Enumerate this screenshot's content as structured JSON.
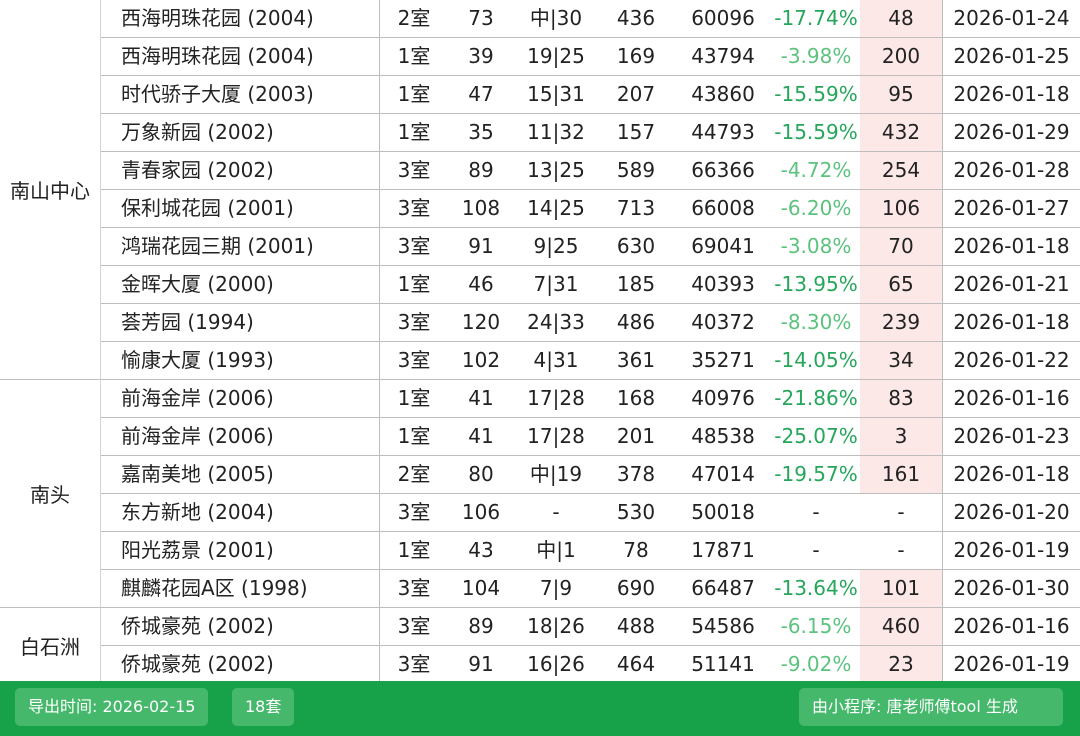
{
  "groups": [
    {
      "name": "南山中心",
      "row_count": 10
    },
    {
      "name": "南头",
      "row_count": 6
    },
    {
      "name": "白石洲",
      "row_count": 2
    }
  ],
  "rows": [
    {
      "name": "西海明珠花园 (2004)",
      "room": "2室",
      "area": "73",
      "floor": "中|30",
      "total": "436",
      "unit_price": "60096",
      "change": "-17.74%",
      "days": "48",
      "date": "2026-01-24"
    },
    {
      "name": "西海明珠花园 (2004)",
      "room": "1室",
      "area": "39",
      "floor": "19|25",
      "total": "169",
      "unit_price": "43794",
      "change": "-3.98%",
      "days": "200",
      "date": "2026-01-25"
    },
    {
      "name": "时代骄子大厦 (2003)",
      "room": "1室",
      "area": "47",
      "floor": "15|31",
      "total": "207",
      "unit_price": "43860",
      "change": "-15.59%",
      "days": "95",
      "date": "2026-01-18"
    },
    {
      "name": "万象新园 (2002)",
      "room": "1室",
      "area": "35",
      "floor": "11|32",
      "total": "157",
      "unit_price": "44793",
      "change": "-15.59%",
      "days": "432",
      "date": "2026-01-29"
    },
    {
      "name": "青春家园 (2002)",
      "room": "3室",
      "area": "89",
      "floor": "13|25",
      "total": "589",
      "unit_price": "66366",
      "change": "-4.72%",
      "days": "254",
      "date": "2026-01-28"
    },
    {
      "name": "保利城花园 (2001)",
      "room": "3室",
      "area": "108",
      "floor": "14|25",
      "total": "713",
      "unit_price": "66008",
      "change": "-6.20%",
      "days": "106",
      "date": "2026-01-27"
    },
    {
      "name": "鸿瑞花园三期 (2001)",
      "room": "3室",
      "area": "91",
      "floor": "9|25",
      "total": "630",
      "unit_price": "69041",
      "change": "-3.08%",
      "days": "70",
      "date": "2026-01-18"
    },
    {
      "name": "金晖大厦 (2000)",
      "room": "1室",
      "area": "46",
      "floor": "7|31",
      "total": "185",
      "unit_price": "40393",
      "change": "-13.95%",
      "days": "65",
      "date": "2026-01-21"
    },
    {
      "name": "荟芳园 (1994)",
      "room": "3室",
      "area": "120",
      "floor": "24|33",
      "total": "486",
      "unit_price": "40372",
      "change": "-8.30%",
      "days": "239",
      "date": "2026-01-18"
    },
    {
      "name": "愉康大厦 (1993)",
      "room": "3室",
      "area": "102",
      "floor": "4|31",
      "total": "361",
      "unit_price": "35271",
      "change": "-14.05%",
      "days": "34",
      "date": "2026-01-22"
    },
    {
      "name": "前海金岸 (2006)",
      "room": "1室",
      "area": "41",
      "floor": "17|28",
      "total": "168",
      "unit_price": "40976",
      "change": "-21.86%",
      "days": "83",
      "date": "2026-01-16"
    },
    {
      "name": "前海金岸 (2006)",
      "room": "1室",
      "area": "41",
      "floor": "17|28",
      "total": "201",
      "unit_price": "48538",
      "change": "-25.07%",
      "days": "3",
      "date": "2026-01-23"
    },
    {
      "name": "嘉南美地 (2005)",
      "room": "2室",
      "area": "80",
      "floor": "中|19",
      "total": "378",
      "unit_price": "47014",
      "change": "-19.57%",
      "days": "161",
      "date": "2026-01-18"
    },
    {
      "name": "东方新地 (2004)",
      "room": "3室",
      "area": "106",
      "floor": "-",
      "total": "530",
      "unit_price": "50018",
      "change": "-",
      "days": "-",
      "date": "2026-01-20"
    },
    {
      "name": "阳光荔景 (2001)",
      "room": "1室",
      "area": "43",
      "floor": "中|1",
      "total": "78",
      "unit_price": "17871",
      "change": "-",
      "days": "-",
      "date": "2026-01-19"
    },
    {
      "name": "麒麟花园A区 (1998)",
      "room": "3室",
      "area": "104",
      "floor": "7|9",
      "total": "690",
      "unit_price": "66487",
      "change": "-13.64%",
      "days": "101",
      "date": "2026-01-30"
    },
    {
      "name": "侨城豪苑 (2002)",
      "room": "3室",
      "area": "89",
      "floor": "18|26",
      "total": "488",
      "unit_price": "54586",
      "change": "-6.15%",
      "days": "460",
      "date": "2026-01-16"
    },
    {
      "name": "侨城豪苑 (2002)",
      "room": "3室",
      "area": "91",
      "floor": "16|26",
      "total": "464",
      "unit_price": "51141",
      "change": "-9.02%",
      "days": "23",
      "date": "2026-01-19"
    }
  ],
  "footer": {
    "export_time": "导出时间: 2026-02-15",
    "count": "18套",
    "credit": "由小程序: 唐老师傅tool 生成"
  },
  "colors": {
    "footer_bg": "#17a24a",
    "footer_button": "#45b86b",
    "change_strong": "#26a65b",
    "change_light": "#5cc27e",
    "days_bg": "#fde8e8"
  }
}
